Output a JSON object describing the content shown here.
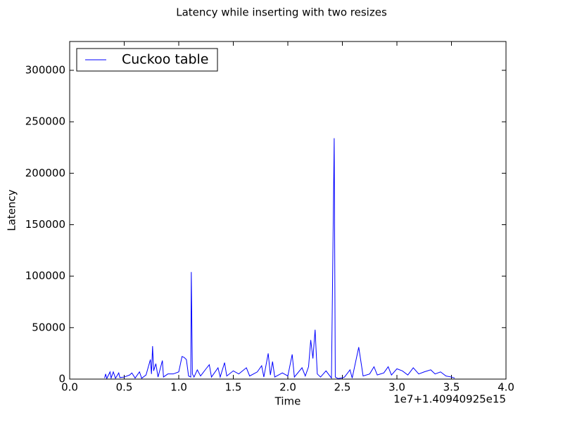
{
  "chart_data": {
    "type": "line",
    "title": "Latency while inserting with two resizes",
    "xlabel": "Time",
    "ylabel": "Latency",
    "x_offset_label": "1e7+1.40940925e15",
    "legend": "upper left",
    "xlim": [
      0,
      4
    ],
    "ylim": [
      0,
      328000
    ],
    "xticks": [
      {
        "value": 0,
        "label": "0.0"
      },
      {
        "value": 0.5,
        "label": "0.5"
      },
      {
        "value": 1,
        "label": "1.0"
      },
      {
        "value": 1.5,
        "label": "1.5"
      },
      {
        "value": 2,
        "label": "2.0"
      },
      {
        "value": 2.5,
        "label": "2.5"
      },
      {
        "value": 3,
        "label": "3.0"
      },
      {
        "value": 3.5,
        "label": "3.5"
      },
      {
        "value": 4,
        "label": "4.0"
      }
    ],
    "yticks": [
      0,
      50000,
      100000,
      150000,
      200000,
      250000,
      300000
    ],
    "x": [
      0.32,
      0.33,
      0.34,
      0.37,
      0.38,
      0.4,
      0.42,
      0.45,
      0.46,
      0.5,
      0.55,
      0.57,
      0.6,
      0.64,
      0.66,
      0.7,
      0.74,
      0.75,
      0.76,
      0.77,
      0.79,
      0.81,
      0.85,
      0.86,
      0.9,
      0.95,
      1.0,
      1.03,
      1.05,
      1.07,
      1.09,
      1.11,
      1.115,
      1.125,
      1.14,
      1.17,
      1.2,
      1.25,
      1.28,
      1.3,
      1.36,
      1.38,
      1.42,
      1.44,
      1.5,
      1.55,
      1.62,
      1.65,
      1.72,
      1.76,
      1.78,
      1.82,
      1.84,
      1.86,
      1.88,
      1.95,
      2.0,
      2.04,
      2.06,
      2.13,
      2.16,
      2.19,
      2.21,
      2.23,
      2.25,
      2.27,
      2.3,
      2.35,
      2.4,
      2.425,
      2.435,
      2.46,
      2.49,
      2.52,
      2.57,
      2.59,
      2.65,
      2.67,
      2.69,
      2.75,
      2.79,
      2.82,
      2.88,
      2.92,
      2.95,
      3.0,
      3.05,
      3.1,
      3.15,
      3.2,
      3.25,
      3.31,
      3.35,
      3.4,
      3.45,
      3.5,
      3.53
    ],
    "series": [
      {
        "name": "Cuckoo table",
        "color": "#0000ff",
        "values": [
          1000,
          5000,
          500,
          7000,
          1000,
          7000,
          800,
          6000,
          1500,
          2000,
          4000,
          6000,
          1000,
          7000,
          800,
          4000,
          19000,
          5000,
          32000,
          8000,
          15000,
          2000,
          18000,
          2000,
          5000,
          5000,
          7000,
          22000,
          21000,
          19000,
          3000,
          2000,
          104000,
          5000,
          2000,
          9000,
          3000,
          10000,
          14000,
          2000,
          11000,
          2000,
          16000,
          3000,
          8000,
          5000,
          11000,
          3000,
          7000,
          13000,
          2000,
          25000,
          4000,
          17000,
          2000,
          6000,
          3000,
          24000,
          2000,
          11000,
          3000,
          12000,
          38000,
          20000,
          48000,
          5000,
          2000,
          8000,
          1000,
          234000,
          2000,
          500,
          1000,
          2000,
          9000,
          1000,
          31000,
          17000,
          3000,
          5000,
          12000,
          4000,
          6000,
          12000,
          4000,
          10000,
          8000,
          4000,
          11000,
          5000,
          7000,
          9000,
          5000,
          7000,
          3000,
          2000,
          1000
        ]
      }
    ]
  }
}
